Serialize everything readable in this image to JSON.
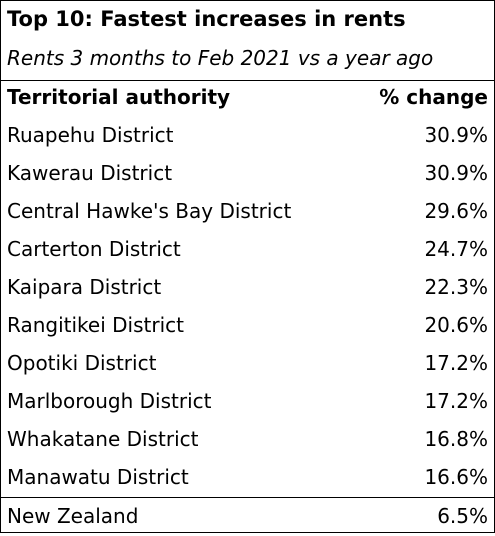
{
  "title": "Top 10: Fastest increases in rents",
  "subtitle": "Rents 3 months to Feb 2021 vs a year ago",
  "table": {
    "headers": {
      "name": "Territorial authority",
      "value": "% change"
    },
    "rows": [
      {
        "name": "Ruapehu District",
        "value": "30.9%"
      },
      {
        "name": "Kawerau District",
        "value": "30.9%"
      },
      {
        "name": "Central Hawke's Bay District",
        "value": "29.6%"
      },
      {
        "name": "Carterton District",
        "value": "24.7%"
      },
      {
        "name": "Kaipara District",
        "value": "22.3%"
      },
      {
        "name": "Rangitikei District",
        "value": "20.6%"
      },
      {
        "name": "Opotiki District",
        "value": "17.2%"
      },
      {
        "name": "Marlborough District",
        "value": "17.2%"
      },
      {
        "name": "Whakatane District",
        "value": "16.8%"
      },
      {
        "name": "Manawatu District",
        "value": "16.6%"
      }
    ],
    "total": {
      "name": "New Zealand",
      "value": "6.5%"
    }
  }
}
